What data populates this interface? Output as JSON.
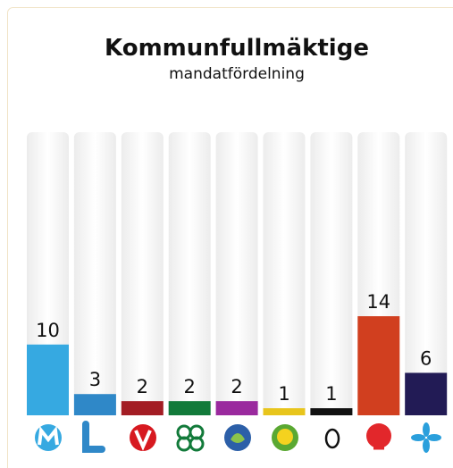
{
  "chart_data": {
    "type": "bar",
    "title": "Kommunfullmäktige",
    "subtitle": "mandatfördelning",
    "categories": [
      null,
      null,
      null,
      null,
      null,
      null,
      null,
      null,
      null
    ],
    "values": [
      10,
      3,
      2,
      2,
      2,
      1,
      1,
      14,
      6
    ],
    "colors": [
      "#36a9e1",
      "#2f88c8",
      "#a31d24",
      "#127a3a",
      "#9a2a9e",
      "#e8c51c",
      "#111111",
      "#d13f1f",
      "#221b55"
    ],
    "ylim": [
      0,
      40
    ]
  }
}
